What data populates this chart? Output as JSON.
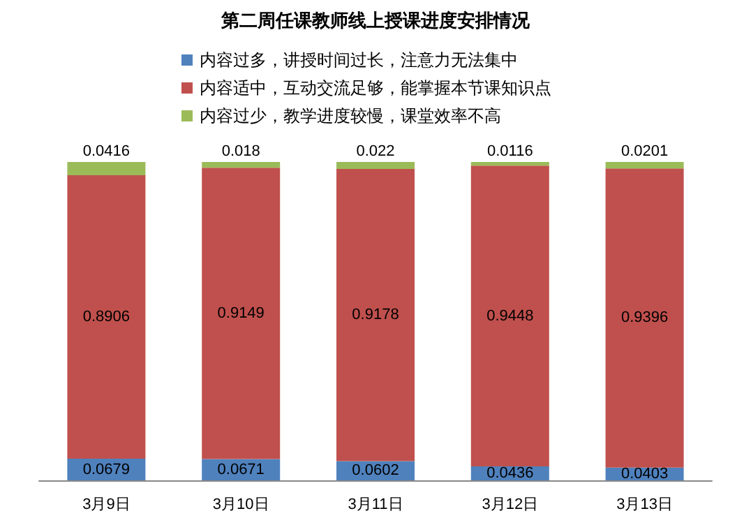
{
  "chart_data": {
    "type": "bar",
    "title": "第二周任课教师线上授课进度安排情况",
    "categories": [
      "3月9日",
      "3月10日",
      "3月11日",
      "3月12日",
      "3月13日"
    ],
    "stacked": true,
    "data_labels": true,
    "legend": "top",
    "series": [
      {
        "name": "内容过多，讲授时间过长，注意力无法集中",
        "color": "#4f81bd",
        "values": [
          0.0679,
          0.0671,
          0.0602,
          0.0436,
          0.0403
        ]
      },
      {
        "name": "内容适中，互动交流足够，能掌握本节课知识点",
        "color": "#c0504d",
        "values": [
          0.8906,
          0.9149,
          0.9178,
          0.9448,
          0.9396
        ]
      },
      {
        "name": "内容过少，教学进度较慢，课堂效率不高",
        "color": "#9bbb59",
        "values": [
          0.0416,
          0.018,
          0.022,
          0.0116,
          0.0201
        ]
      }
    ]
  }
}
